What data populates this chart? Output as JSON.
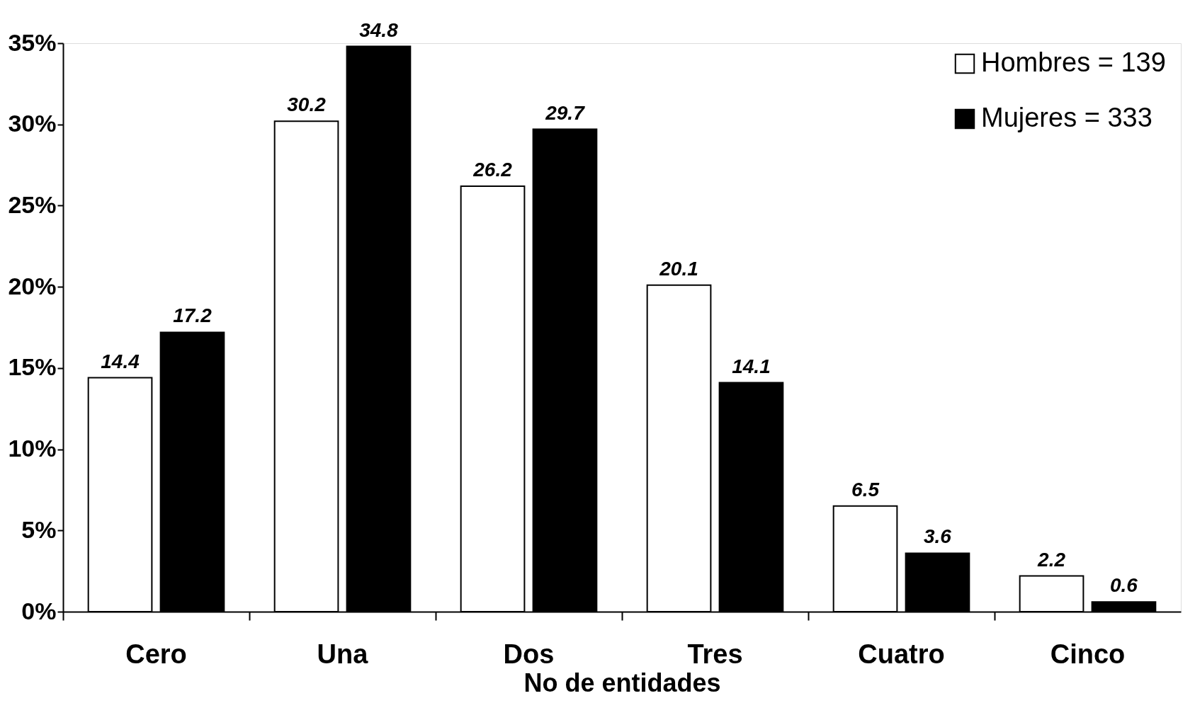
{
  "chart_data": {
    "type": "bar",
    "xlabel": "No de entidades",
    "categories": [
      "Cero",
      "Una",
      "Dos",
      "Tres",
      "Cuatro",
      "Cinco"
    ],
    "series": [
      {
        "name": "Hombres  = 139",
        "color": "#ffffff",
        "values": [
          14.4,
          30.2,
          26.2,
          20.1,
          6.5,
          2.2
        ]
      },
      {
        "name": "Mujeres = 333",
        "color": "#000000",
        "values": [
          17.2,
          34.8,
          29.7,
          14.1,
          3.6,
          0.6
        ]
      }
    ],
    "ylim": [
      0,
      35
    ],
    "yticks": [
      {
        "value": 0,
        "label": "0%"
      },
      {
        "value": 5,
        "label": "5%"
      },
      {
        "value": 10,
        "label": "10%"
      },
      {
        "value": 15,
        "label": "15%"
      },
      {
        "value": 20,
        "label": "20%"
      },
      {
        "value": 25,
        "label": "25%"
      },
      {
        "value": 30,
        "label": "30%"
      },
      {
        "value": 35,
        "label": "35%"
      }
    ],
    "data_labels": true,
    "grid": false,
    "legend": "top right"
  }
}
